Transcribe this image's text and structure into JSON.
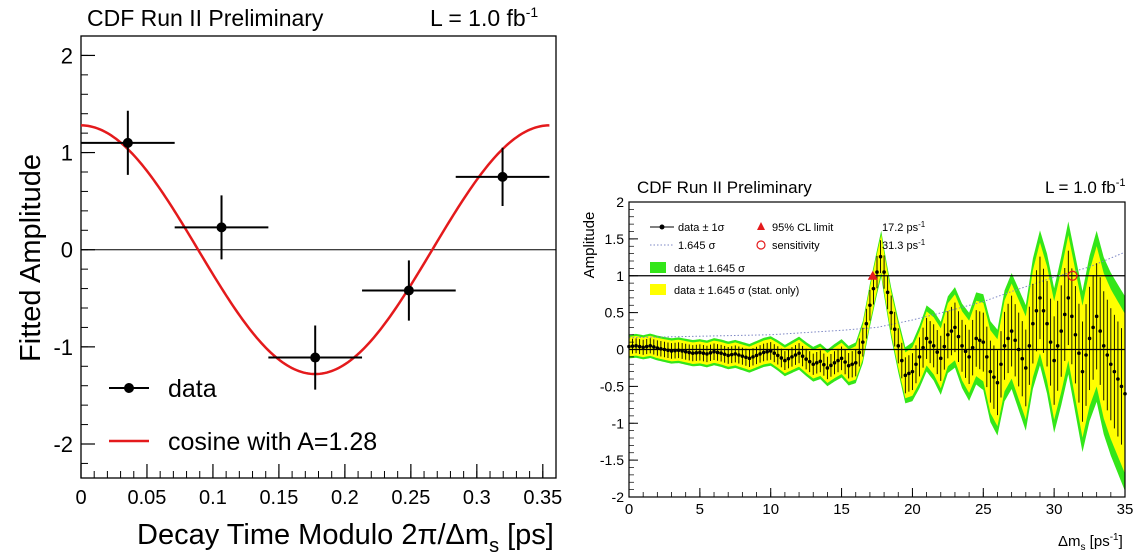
{
  "chart_data": [
    {
      "type": "scatter",
      "title": "CDF Run II Preliminary",
      "luminosity": "L = 1.0 fb",
      "luminosity_sup": "-1",
      "xlabel": "Decay Time Modulo 2π/Δm",
      "xlabel_sub": "s",
      "xlabel_suffix": " [ps]",
      "ylabel": "Fitted Amplitude",
      "xlim": [
        0,
        0.36
      ],
      "ylim": [
        -2.35,
        2.2
      ],
      "x_ticks": [
        "0",
        "0.05",
        "0.1",
        "0.15",
        "0.2",
        "0.25",
        "0.3",
        "0.35"
      ],
      "y_ticks": [
        "2",
        "1",
        "0",
        "-1",
        "-2"
      ],
      "y_tick_values": [
        2,
        1,
        0,
        -1,
        -2
      ],
      "data": [
        {
          "x": 0.0355,
          "y": 1.1,
          "xerr": 0.0355,
          "yerr": 0.33
        },
        {
          "x": 0.1065,
          "y": 0.23,
          "xerr": 0.0355,
          "yerr": 0.33
        },
        {
          "x": 0.1775,
          "y": -1.11,
          "xerr": 0.0355,
          "yerr": 0.33
        },
        {
          "x": 0.2485,
          "y": -0.42,
          "xerr": 0.0355,
          "yerr": 0.31
        },
        {
          "x": 0.3195,
          "y": 0.75,
          "xerr": 0.0355,
          "yerr": 0.3
        }
      ],
      "curve": {
        "amplitude": 1.28,
        "period": 0.355,
        "color": "#e41a1c"
      },
      "legend": [
        {
          "label": "data"
        },
        {
          "label": "cosine with A=1.28"
        }
      ],
      "legend_position": "bottom-left"
    },
    {
      "type": "line",
      "title": "CDF Run II Preliminary",
      "luminosity": "L = 1.0 fb",
      "luminosity_sup": "-1",
      "xlabel": "Δm",
      "xlabel_sub": "s",
      "xlabel_suffix": " [ps",
      "xlabel_sup": "-1",
      "xlabel_close": "]",
      "ylabel": "Amplitude",
      "xlim": [
        0,
        35
      ],
      "ylim": [
        -2,
        2
      ],
      "x_ticks": [
        "0",
        "5",
        "10",
        "15",
        "20",
        "25",
        "30",
        "35"
      ],
      "y_ticks": [
        "2",
        "1.5",
        "1",
        "0.5",
        "0",
        "-0.5",
        "-1",
        "-1.5",
        "-2"
      ],
      "y_tick_values": [
        2,
        1.5,
        1,
        0.5,
        0,
        -0.5,
        -1,
        -1.5,
        -2
      ],
      "reference_lines": [
        0,
        1
      ],
      "amplitude": [
        [
          0.0,
          0.04
        ],
        [
          0.5,
          0.05
        ],
        [
          1.0,
          0.03
        ],
        [
          1.5,
          0.05
        ],
        [
          2.0,
          0.02
        ],
        [
          2.5,
          0.0
        ],
        [
          3.0,
          -0.02
        ],
        [
          3.5,
          -0.01
        ],
        [
          4.0,
          -0.03
        ],
        [
          4.5,
          -0.05
        ],
        [
          5.0,
          -0.04
        ],
        [
          5.5,
          -0.06
        ],
        [
          6.0,
          -0.03
        ],
        [
          6.5,
          -0.05
        ],
        [
          7.0,
          -0.08
        ],
        [
          7.5,
          -0.06
        ],
        [
          8.0,
          -0.09
        ],
        [
          8.5,
          -0.12
        ],
        [
          9.0,
          -0.08
        ],
        [
          9.5,
          -0.04
        ],
        [
          10.0,
          -0.02
        ],
        [
          10.5,
          -0.08
        ],
        [
          11.0,
          -0.15
        ],
        [
          11.5,
          -0.1
        ],
        [
          12.0,
          -0.05
        ],
        [
          12.5,
          -0.13
        ],
        [
          13.0,
          -0.2
        ],
        [
          13.5,
          -0.16
        ],
        [
          14.0,
          -0.25
        ],
        [
          14.5,
          -0.18
        ],
        [
          15.0,
          -0.12
        ],
        [
          15.5,
          -0.22
        ],
        [
          16.0,
          -0.18
        ],
        [
          16.5,
          0.1
        ],
        [
          17.0,
          0.6
        ],
        [
          17.5,
          1.05
        ],
        [
          17.8,
          1.3
        ],
        [
          18.0,
          1.05
        ],
        [
          18.5,
          0.5
        ],
        [
          19.0,
          0.05
        ],
        [
          19.5,
          -0.35
        ],
        [
          20.0,
          -0.3
        ],
        [
          20.5,
          -0.1
        ],
        [
          21.0,
          0.15
        ],
        [
          21.5,
          0.05
        ],
        [
          22.0,
          -0.12
        ],
        [
          22.5,
          0.2
        ],
        [
          23.0,
          0.3
        ],
        [
          23.5,
          0.05
        ],
        [
          24.0,
          -0.1
        ],
        [
          24.5,
          0.15
        ],
        [
          25.0,
          0.1
        ],
        [
          25.5,
          -0.3
        ],
        [
          26.0,
          -0.45
        ],
        [
          26.5,
          0.05
        ],
        [
          27.0,
          0.25
        ],
        [
          27.5,
          0.0
        ],
        [
          28.0,
          -0.25
        ],
        [
          28.5,
          0.35
        ],
        [
          29.0,
          0.7
        ],
        [
          29.5,
          0.35
        ],
        [
          30.0,
          -0.15
        ],
        [
          30.5,
          0.25
        ],
        [
          31.0,
          0.7
        ],
        [
          31.5,
          0.2
        ],
        [
          32.0,
          -0.3
        ],
        [
          32.5,
          0.15
        ],
        [
          33.0,
          0.45
        ],
        [
          33.5,
          0.05
        ],
        [
          34.0,
          -0.2
        ],
        [
          34.5,
          -0.4
        ],
        [
          35.0,
          -0.6
        ]
      ],
      "sigma_1": [
        [
          0.0,
          0.1
        ],
        [
          5.0,
          0.11
        ],
        [
          10.0,
          0.12
        ],
        [
          15.0,
          0.16
        ],
        [
          17.5,
          0.22
        ],
        [
          20.0,
          0.25
        ],
        [
          22.5,
          0.32
        ],
        [
          25.0,
          0.4
        ],
        [
          27.5,
          0.5
        ],
        [
          30.0,
          0.6
        ],
        [
          32.5,
          0.7
        ],
        [
          35.0,
          0.8
        ]
      ],
      "sigma_1645": [
        [
          0.0,
          0.16
        ],
        [
          5.0,
          0.18
        ],
        [
          10.0,
          0.2
        ],
        [
          15.0,
          0.26
        ],
        [
          17.5,
          0.3
        ],
        [
          20.0,
          0.4
        ],
        [
          22.5,
          0.52
        ],
        [
          25.0,
          0.65
        ],
        [
          27.5,
          0.82
        ],
        [
          30.0,
          0.98
        ],
        [
          32.5,
          1.12
        ],
        [
          35.0,
          1.32
        ]
      ],
      "limit_95cl": {
        "x": 17.2,
        "y": 1.0
      },
      "sensitivity": {
        "x": 31.3,
        "y": 1.0
      },
      "legend": [
        {
          "symbol": "data-point",
          "label": "data ± 1σ"
        },
        {
          "symbol": "red-triangle",
          "label": "95% CL limit",
          "value": "17.2 ps",
          "value_sup": "-1"
        },
        {
          "symbol": "dotted-line",
          "label": "1.645 σ"
        },
        {
          "symbol": "red-circle",
          "label": "sensitivity",
          "value": "31.3 ps",
          "value_sup": "-1"
        },
        {
          "symbol": "green-box",
          "label": "data ± 1.645 σ"
        },
        {
          "symbol": "yellow-box",
          "label": "data ± 1.645 σ (stat. only)"
        }
      ],
      "legend_position": "top-left",
      "colors": {
        "green": "#33e619",
        "yellow": "#ffff00",
        "dotted": "#7d87c4",
        "marker": "#e41a1c"
      }
    }
  ]
}
